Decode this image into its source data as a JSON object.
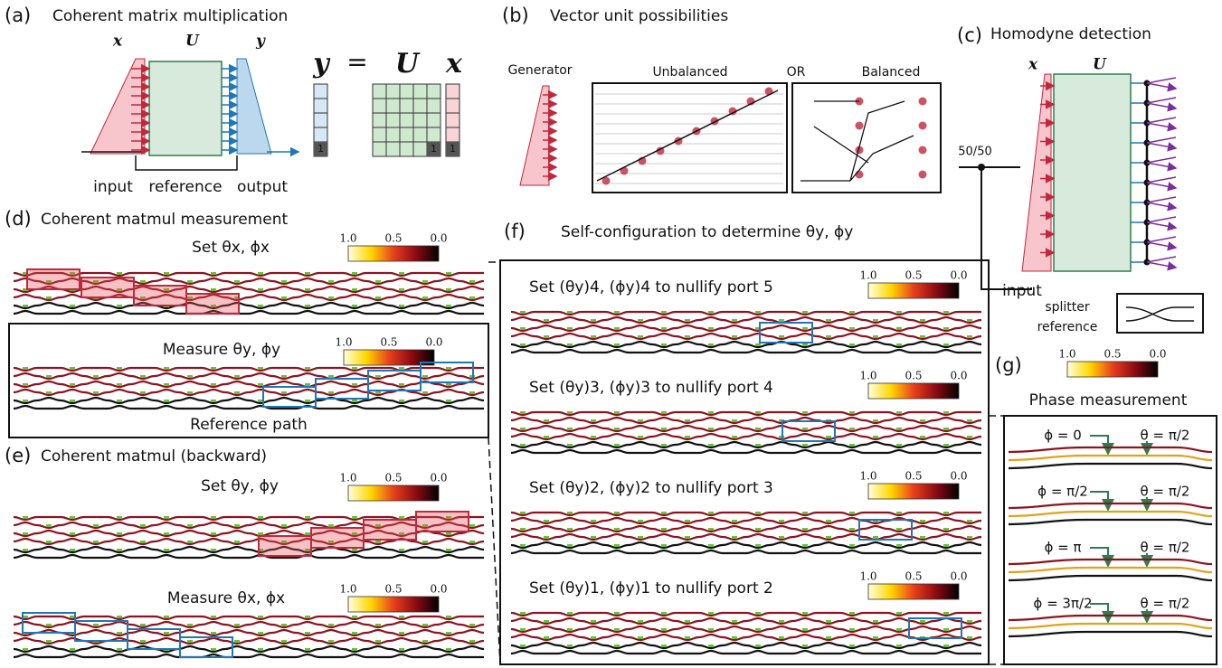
{
  "colorbar": {
    "labels": [
      "1.0",
      "0.5",
      "0.0"
    ]
  },
  "panels": [
    {
      "label": "(a)",
      "title": "Coherent matrix multiplication",
      "symbols": [
        "x",
        "U",
        "y"
      ],
      "equation": [
        "y",
        "=",
        "U",
        "x"
      ],
      "unit": "1",
      "captions": [
        "input",
        "reference",
        "output"
      ]
    },
    {
      "label": "(b)",
      "title": "Vector unit possibilities",
      "captions": [
        "Generator",
        "Unbalanced",
        "OR",
        "Balanced"
      ]
    },
    {
      "label": "(c)",
      "title": "Homodyne detection",
      "symbols": [
        "x",
        "U"
      ],
      "captions": [
        "50/50",
        "input",
        "splitter",
        "reference"
      ]
    },
    {
      "label": "(d)",
      "title": "Coherent matmul measurement",
      "steps": [
        "Set θx, ϕx",
        "Measure θy, ϕy"
      ],
      "note": "Reference path"
    },
    {
      "label": "(e)",
      "title": "Coherent matmul (backward)",
      "steps": [
        "Set θy, ϕy",
        "Measure θx, ϕx"
      ]
    },
    {
      "label": "(f)",
      "title": "Self-configuration to determine θy, ϕy",
      "steps": [
        "Set (θy)4, (ϕy)4 to nullify port 5",
        "Set (θy)3, (ϕy)3 to nullify port 4",
        "Set (θy)2, (ϕy)2 to nullify port 3",
        "Set (θy)1, (ϕy)1 to nullify port 2"
      ]
    },
    {
      "label": "(g)",
      "title": "Phase measurement",
      "rows": [
        [
          "ϕ = 0",
          "θ = π/2"
        ],
        [
          "ϕ = π/2",
          "θ = π/2"
        ],
        [
          "ϕ = π",
          "θ = π/2"
        ],
        [
          "ϕ = 3π/2",
          "θ = π/2"
        ]
      ]
    }
  ]
}
